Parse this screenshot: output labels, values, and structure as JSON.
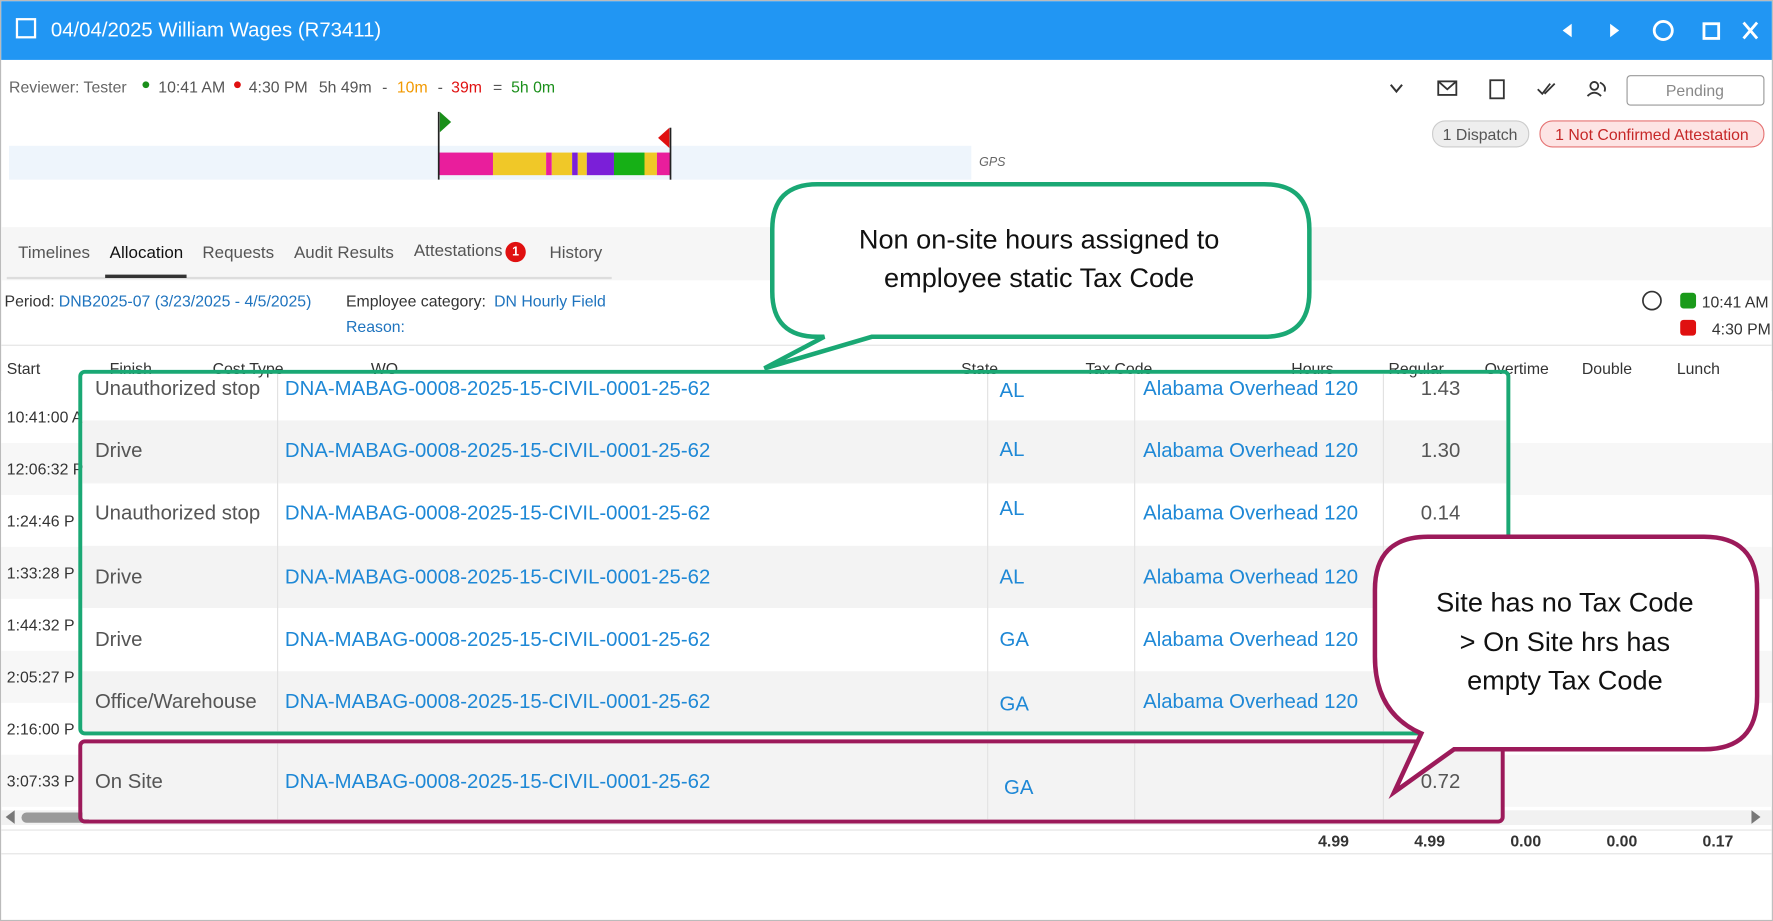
{
  "header": {
    "title": "04/04/2025 William Wages (R73411)"
  },
  "summary": {
    "reviewer": "Reviewer: Tester",
    "start": "10:41 AM",
    "end": "4:30 PM",
    "duration": "5h 49m",
    "ops": [
      "-",
      "-",
      "="
    ],
    "minus1": "10m",
    "minus2": "39m",
    "total": "5h 0m",
    "gps": "GPS",
    "status": "Pending",
    "dispatch": "1 Dispatch",
    "attestation": "1 Not Confirmed Attestation"
  },
  "tabs": [
    "Timelines",
    "Allocation",
    "Requests",
    "Audit Results",
    "Attestations",
    "History"
  ],
  "attestations_badge": "1",
  "period": {
    "label": "Period:",
    "value": "DNB2025-07 (3/23/2025 - 4/5/2025)",
    "category_label": "Employee category:",
    "category": "DN Hourly Field",
    "reason_label": "Reason:"
  },
  "legend": [
    "10:41 AM",
    "4:30 PM"
  ],
  "table": {
    "columns": [
      "Start",
      "Finish",
      "Cost Type",
      "WO",
      "State",
      "Tax Code",
      "Hours",
      "Regular",
      "Overtime",
      "Double",
      "Lunch"
    ],
    "start_times": [
      "10:41:00 A",
      "12:06:32 P",
      "1:24:46 P",
      "1:33:28 P",
      "1:44:32 P",
      "2:05:27 P",
      "2:16:00 P",
      "3:07:33 P"
    ],
    "lunch": "0.17",
    "rows": [
      [
        "Unauthorized stop",
        "DNA-MABAG-0008-2025-15-CIVIL-0001-25-62",
        "AL",
        "Alabama Overhead 120",
        "1.43"
      ],
      [
        "Drive",
        "DNA-MABAG-0008-2025-15-CIVIL-0001-25-62",
        "AL",
        "Alabama Overhead 120",
        "1.30"
      ],
      [
        "Unauthorized stop",
        "DNA-MABAG-0008-2025-15-CIVIL-0001-25-62",
        "AL",
        "Alabama Overhead 120",
        "0.14"
      ],
      [
        "Drive",
        "DNA-MABAG-0008-2025-15-CIVIL-0001-25-62",
        "AL",
        "Alabama Overhead 120",
        null
      ],
      [
        "Drive",
        "DNA-MABAG-0008-2025-15-CIVIL-0001-25-62",
        "GA",
        "Alabama Overhead 120",
        null
      ],
      [
        "Office/Warehouse",
        "DNA-MABAG-0008-2025-15-CIVIL-0001-25-62",
        "GA",
        "Alabama Overhead 120",
        null
      ]
    ],
    "onsite_row": [
      "On Site",
      "DNA-MABAG-0008-2025-15-CIVIL-0001-25-62",
      "GA",
      null,
      "0.72"
    ],
    "totals": [
      "4.99",
      "4.99",
      "0.00",
      "0.00",
      "0.17"
    ]
  },
  "callouts": [
    [
      "Non on-site hours assigned to",
      "employee static Tax Code"
    ],
    [
      "Site has no Tax Code",
      "> On Site hrs has",
      "empty Tax Code"
    ]
  ]
}
